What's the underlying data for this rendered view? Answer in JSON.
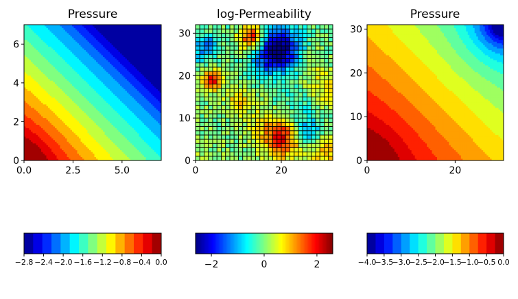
{
  "chart_data": [
    {
      "type": "heatmap",
      "subtype": "filled-contour",
      "title": "Pressure",
      "xlim": [
        0,
        7
      ],
      "ylim": [
        0,
        7
      ],
      "xticks": [
        "0.0",
        "2.5",
        "5.0"
      ],
      "xtick_values": [
        0,
        2.5,
        5
      ],
      "yticks": [
        "0",
        "2",
        "4",
        "6"
      ],
      "ytick_values": [
        0,
        2,
        4,
        6
      ],
      "value_range": [
        -2.8,
        0.0
      ],
      "colormap": "jet",
      "field_description": "highest (~0) at bottom-left corner, decreasing to ~-2.8 at top-right corner",
      "colorbar": {
        "ticks": [
          "−2.8",
          "−2.4",
          "−2.0",
          "−1.6",
          "−1.2",
          "−0.8",
          "−0.4",
          "0.0"
        ],
        "tick_values": [
          -2.8,
          -2.4,
          -2.0,
          -1.6,
          -1.2,
          -0.8,
          -0.4,
          0.0
        ],
        "levels": 15
      }
    },
    {
      "type": "heatmap",
      "title": "log-Permeability",
      "grid_size": [
        32,
        32
      ],
      "xlim": [
        0,
        32
      ],
      "ylim": [
        0,
        32
      ],
      "xticks": [
        "0",
        "20"
      ],
      "xtick_values": [
        0,
        20
      ],
      "yticks": [
        "0",
        "10",
        "20",
        "30"
      ],
      "ytick_values": [
        0,
        10,
        20,
        30
      ],
      "value_range": [
        -2.6,
        2.6
      ],
      "colormap": "jet",
      "cell_edges": true,
      "colorbar": {
        "ticks": [
          "−2",
          "0",
          "2"
        ],
        "tick_values": [
          -2,
          0,
          2
        ],
        "continuous": true
      }
    },
    {
      "type": "heatmap",
      "subtype": "filled-contour",
      "title": "Pressure",
      "xlim": [
        0,
        31
      ],
      "ylim": [
        0,
        31
      ],
      "xticks": [
        "0",
        "20"
      ],
      "xtick_values": [
        0,
        20
      ],
      "yticks": [
        "0",
        "10",
        "20",
        "30"
      ],
      "ytick_values": [
        0,
        10,
        20,
        30
      ],
      "value_range": [
        -4.0,
        0.0
      ],
      "colormap": "jet",
      "field_description": "highest (~0) at bottom-left corner, decreasing to ~-4.0 at top-right corner",
      "colorbar": {
        "ticks": [
          "−4.0",
          "−3.5",
          "−3.0",
          "−2.5",
          "−2.0",
          "−1.5",
          "−1.0",
          "−0.5",
          "0.0"
        ],
        "tick_values": [
          -4.0,
          -3.5,
          -3.0,
          -2.5,
          -2.0,
          -1.5,
          -1.0,
          -0.5,
          0.0
        ],
        "levels": 16
      }
    }
  ]
}
